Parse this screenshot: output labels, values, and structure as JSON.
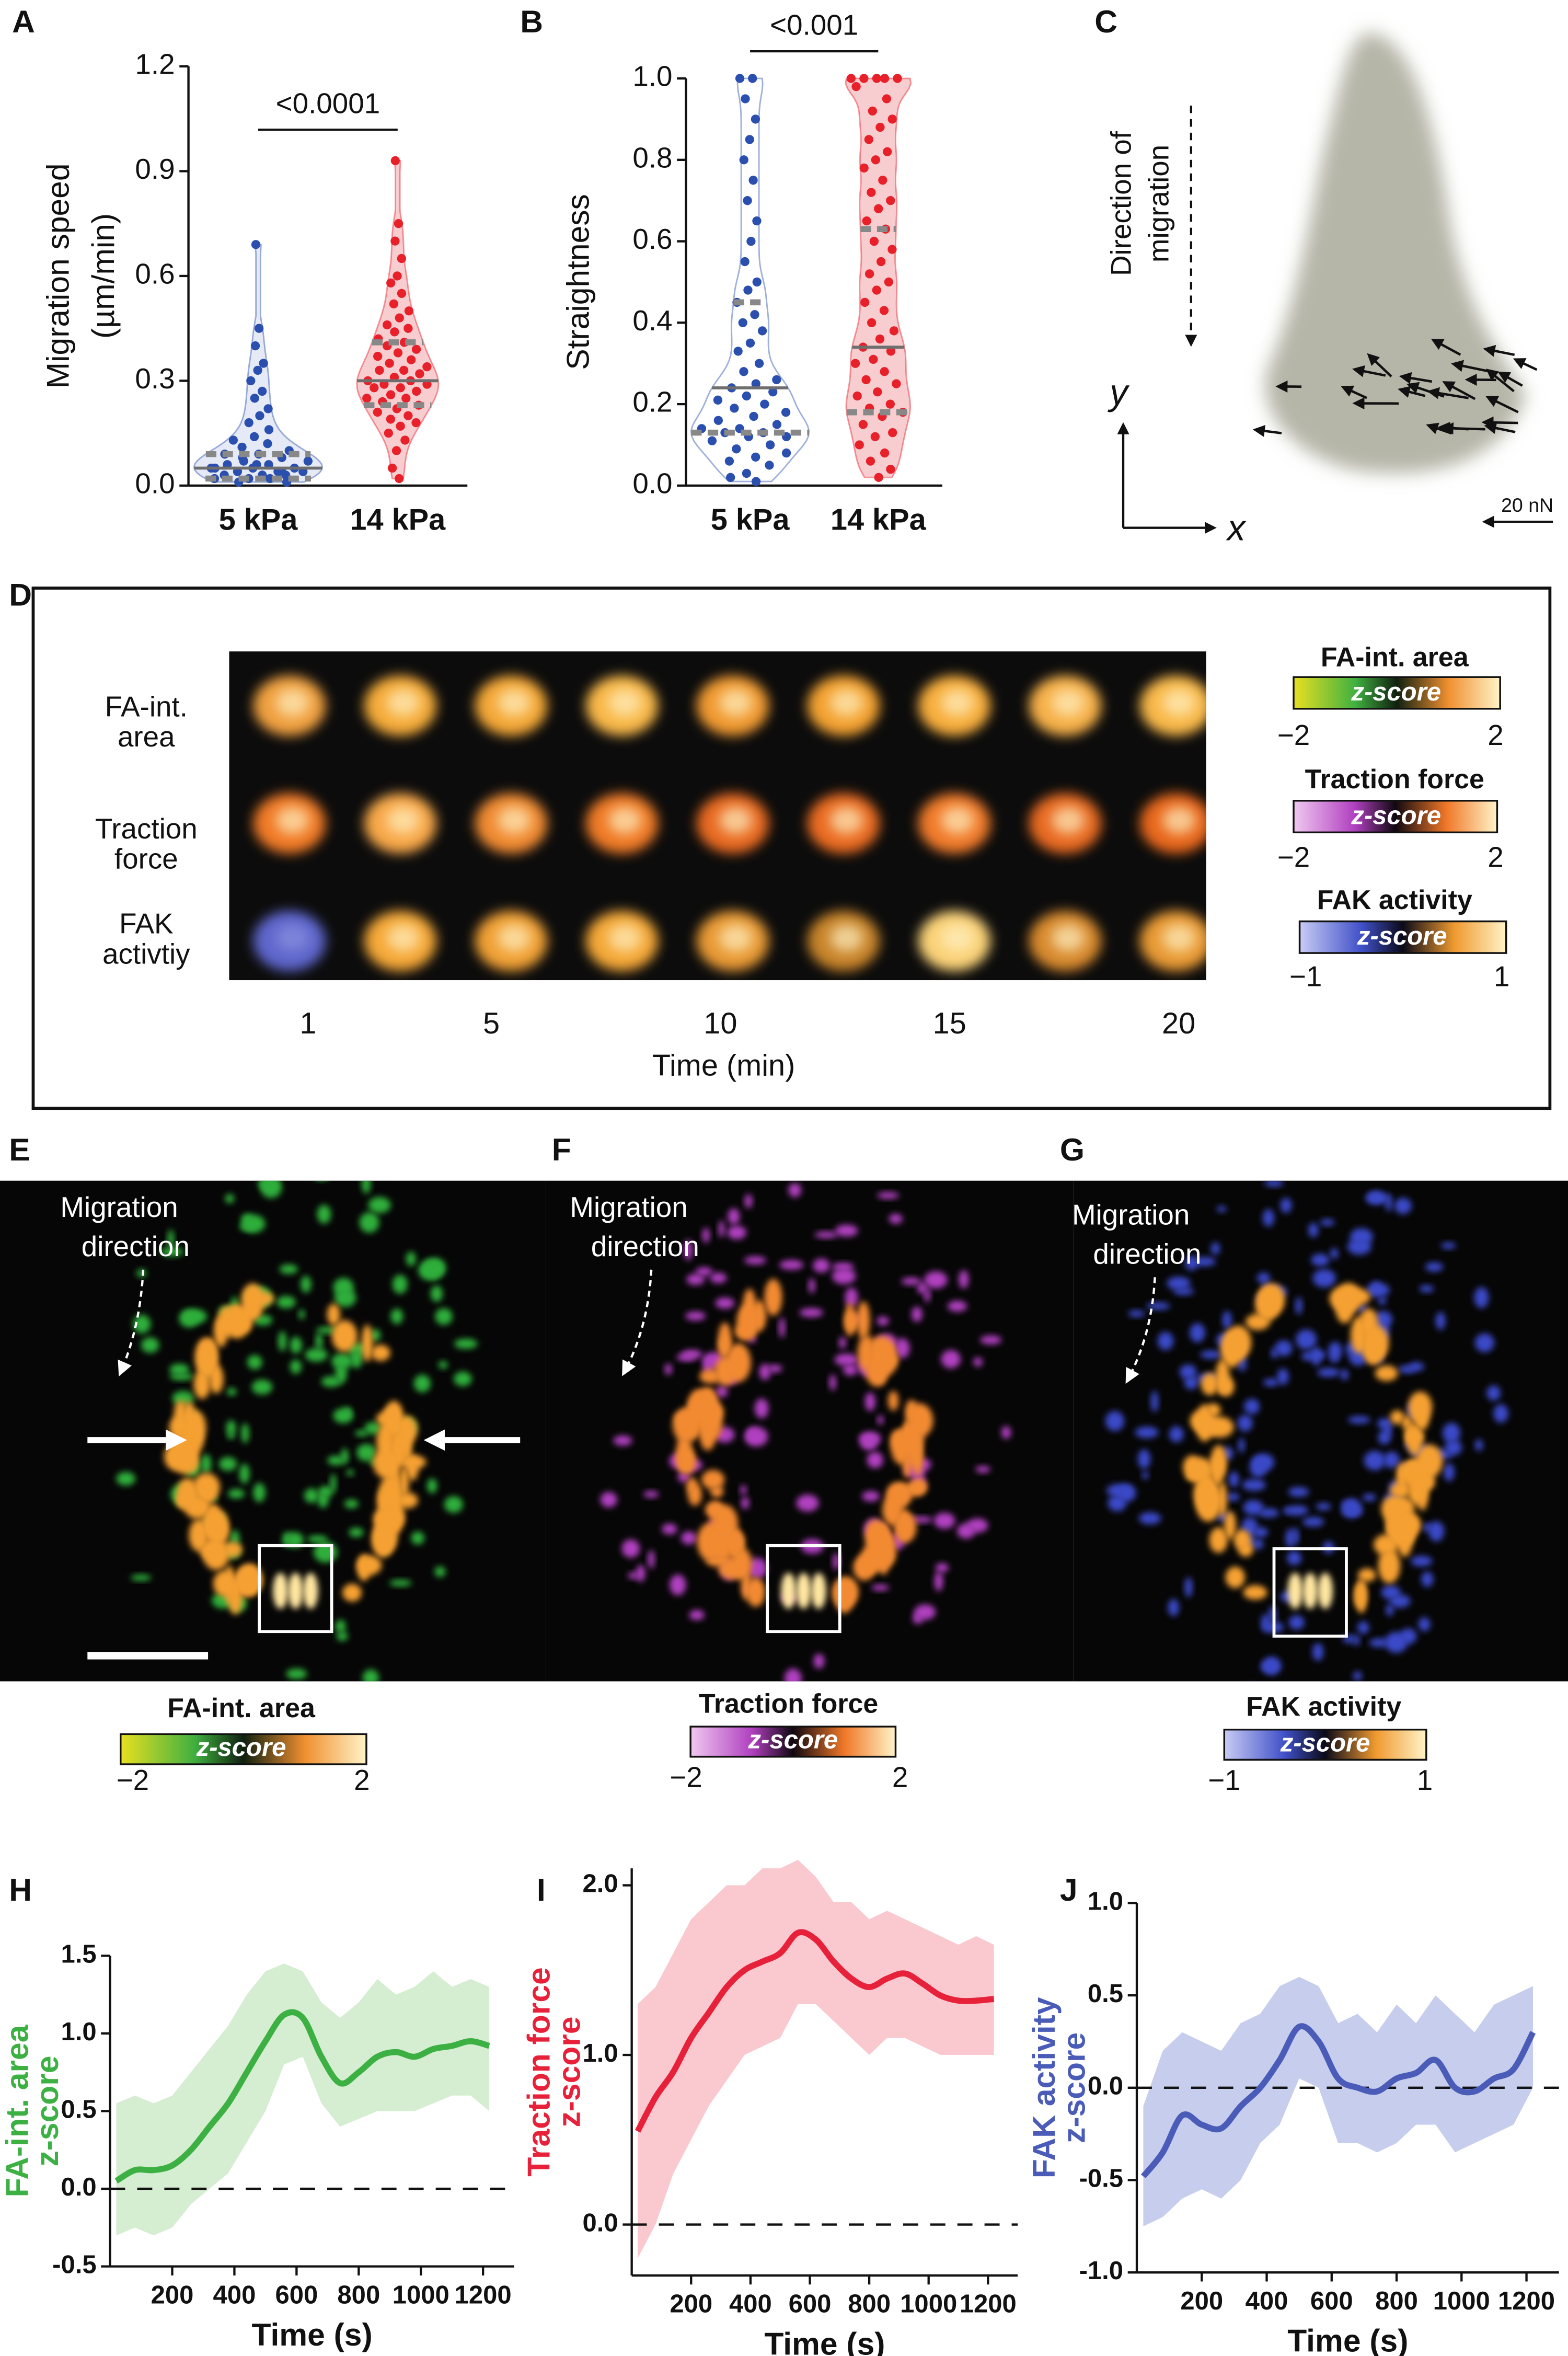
{
  "chart_data": [
    {
      "type": "violin",
      "panel": "A",
      "ylabel": [
        "Migration speed",
        "(µm/min)"
      ],
      "categories": [
        "5 kPa",
        "14 kPa"
      ],
      "annotation": "<0.0001",
      "ylim": [
        0,
        1.2
      ],
      "yticks": [
        {
          "value": 0,
          "label": "0.0"
        },
        0.3,
        0.6,
        0.9,
        1.2
      ],
      "groups": [
        {
          "color": "#2a4fae",
          "fill": "#e6eaf6",
          "median": 0.05,
          "q1": 0.02,
          "q3": 0.09,
          "points": [
            0.69,
            0.45,
            0.4,
            0.35,
            0.33,
            0.3,
            0.27,
            0.25,
            0.22,
            0.2,
            0.18,
            0.16,
            0.14,
            0.13,
            0.12,
            0.11,
            0.1,
            0.09,
            0.09,
            0.08,
            0.07,
            0.07,
            0.06,
            0.06,
            0.05,
            0.05,
            0.05,
            0.04,
            0.04,
            0.04,
            0.03,
            0.03,
            0.03,
            0.02,
            0.02,
            0.02,
            0.01,
            0.01,
            0.06,
            0.05,
            0.04,
            0.08
          ]
        },
        {
          "color": "#e8202a",
          "fill": "#f7cdd0",
          "median": 0.3,
          "q1": 0.23,
          "q3": 0.41,
          "points": [
            0.93,
            0.75,
            0.7,
            0.65,
            0.6,
            0.58,
            0.55,
            0.52,
            0.5,
            0.48,
            0.46,
            0.45,
            0.44,
            0.42,
            0.41,
            0.4,
            0.39,
            0.38,
            0.37,
            0.36,
            0.35,
            0.34,
            0.33,
            0.33,
            0.32,
            0.31,
            0.3,
            0.3,
            0.29,
            0.29,
            0.28,
            0.28,
            0.27,
            0.26,
            0.25,
            0.25,
            0.24,
            0.23,
            0.22,
            0.21,
            0.2,
            0.19,
            0.18,
            0.17,
            0.15,
            0.13,
            0.1,
            0.05,
            0.02
          ]
        }
      ]
    },
    {
      "type": "violin",
      "panel": "B",
      "ylabel": [
        "Straightness"
      ],
      "categories": [
        "5 kPa",
        "14 kPa"
      ],
      "annotation": "<0.001",
      "ylim": [
        0,
        1
      ],
      "yticks": [
        {
          "value": 0,
          "label": "0.0"
        },
        0.2,
        0.4,
        0.6,
        0.8,
        {
          "value": 1,
          "label": "1.0"
        }
      ],
      "groups": [
        {
          "color": "#2a4fae",
          "fill": "#ffffff",
          "median": 0.24,
          "q1": 0.13,
          "q3": 0.45,
          "points": [
            1.0,
            1.0,
            0.95,
            0.9,
            0.85,
            0.8,
            0.75,
            0.7,
            0.65,
            0.6,
            0.55,
            0.5,
            0.48,
            0.45,
            0.42,
            0.4,
            0.38,
            0.35,
            0.33,
            0.3,
            0.28,
            0.26,
            0.25,
            0.24,
            0.23,
            0.22,
            0.21,
            0.2,
            0.19,
            0.18,
            0.17,
            0.16,
            0.15,
            0.14,
            0.14,
            0.13,
            0.13,
            0.12,
            0.12,
            0.11,
            0.1,
            0.09,
            0.08,
            0.07,
            0.06,
            0.05,
            0.03,
            0.02,
            0.01
          ]
        },
        {
          "color": "#e8202a",
          "fill": "#f7cdd0",
          "median": 0.34,
          "q1": 0.18,
          "q3": 0.63,
          "points": [
            1.0,
            1.0,
            1.0,
            1.0,
            1.0,
            0.98,
            0.95,
            0.92,
            0.9,
            0.88,
            0.85,
            0.82,
            0.8,
            0.78,
            0.75,
            0.72,
            0.7,
            0.68,
            0.65,
            0.63,
            0.6,
            0.58,
            0.55,
            0.52,
            0.5,
            0.48,
            0.45,
            0.43,
            0.4,
            0.38,
            0.36,
            0.34,
            0.33,
            0.31,
            0.3,
            0.28,
            0.26,
            0.25,
            0.23,
            0.22,
            0.2,
            0.19,
            0.18,
            0.17,
            0.15,
            0.13,
            0.12,
            0.1,
            0.08,
            0.06,
            0.04,
            0.02
          ]
        }
      ]
    },
    {
      "type": "band-line",
      "panel": "H",
      "ylabel": [
        "FA-int. area",
        "z-score"
      ],
      "xlabel": "Time (s)",
      "color": "#3cb043",
      "band_color": "#cbe9c4",
      "xlim": [
        0,
        1300
      ],
      "xticks": [
        200,
        400,
        600,
        800,
        1000,
        1200
      ],
      "ylim": [
        -0.5,
        1.5
      ],
      "yticks": [
        -0.5,
        {
          "value": 0,
          "label": "0.0"
        },
        0.5,
        {
          "value": 1,
          "label": "1.0"
        },
        1.5
      ],
      "hline": 0,
      "x": [
        20,
        80,
        140,
        200,
        260,
        320,
        380,
        440,
        500,
        560,
        620,
        680,
        740,
        800,
        860,
        920,
        980,
        1040,
        1100,
        1160,
        1220
      ],
      "values": [
        0.05,
        0.12,
        0.12,
        0.15,
        0.25,
        0.4,
        0.55,
        0.75,
        0.95,
        1.12,
        1.1,
        0.85,
        0.68,
        0.75,
        0.85,
        0.88,
        0.85,
        0.9,
        0.92,
        0.95,
        0.92
      ],
      "upper": [
        0.55,
        0.6,
        0.55,
        0.6,
        0.75,
        0.9,
        1.05,
        1.25,
        1.4,
        1.45,
        1.4,
        1.2,
        1.1,
        1.2,
        1.35,
        1.25,
        1.3,
        1.4,
        1.3,
        1.35,
        1.3
      ],
      "lower": [
        -0.3,
        -0.25,
        -0.3,
        -0.25,
        -0.1,
        0,
        0.1,
        0.3,
        0.5,
        0.8,
        0.85,
        0.55,
        0.4,
        0.45,
        0.5,
        0.5,
        0.5,
        0.55,
        0.6,
        0.6,
        0.5
      ]
    },
    {
      "type": "band-line",
      "panel": "I",
      "ylabel": [
        "Traction force",
        "z-score"
      ],
      "xlabel": "Time (s)",
      "color": "#e8213a",
      "band_color": "#f7bcc3",
      "xlim": [
        0,
        1300
      ],
      "xticks": [
        200,
        400,
        600,
        800,
        1000,
        1200
      ],
      "ylim": [
        -0.3,
        2.1
      ],
      "yticks": [
        {
          "value": 0,
          "label": "0.0"
        },
        {
          "value": 1,
          "label": "1.0"
        },
        {
          "value": 2,
          "label": "2.0"
        }
      ],
      "hline": 0,
      "x": [
        20,
        80,
        140,
        200,
        260,
        320,
        380,
        440,
        500,
        560,
        620,
        680,
        740,
        800,
        860,
        920,
        980,
        1040,
        1100,
        1160,
        1220
      ],
      "values": [
        0.55,
        0.75,
        0.9,
        1.1,
        1.25,
        1.4,
        1.5,
        1.55,
        1.6,
        1.72,
        1.68,
        1.55,
        1.45,
        1.4,
        1.45,
        1.48,
        1.42,
        1.35,
        1.32,
        1.32,
        1.33
      ],
      "upper": [
        1.3,
        1.4,
        1.6,
        1.8,
        1.9,
        2.0,
        2.0,
        2.1,
        2.1,
        2.15,
        2.05,
        1.9,
        1.9,
        1.8,
        1.85,
        1.8,
        1.75,
        1.7,
        1.65,
        1.7,
        1.65
      ],
      "lower": [
        -0.2,
        0,
        0.3,
        0.5,
        0.7,
        0.85,
        1.0,
        1.05,
        1.1,
        1.3,
        1.3,
        1.2,
        1.1,
        1.0,
        1.1,
        1.1,
        1.05,
        1.0,
        1.0,
        1.0,
        1.0
      ]
    },
    {
      "type": "band-line",
      "panel": "J",
      "ylabel": [
        "FAK activity",
        "z-score"
      ],
      "xlabel": "Time (s)",
      "color": "#4a5cb8",
      "band_color": "#b8c0e8",
      "xlim": [
        0,
        1300
      ],
      "xticks": [
        200,
        400,
        600,
        800,
        1000,
        1200
      ],
      "ylim": [
        -1,
        1
      ],
      "yticks": [
        {
          "value": -1,
          "label": "-1.0"
        },
        -0.5,
        {
          "value": 0,
          "label": "0.0"
        },
        0.5,
        {
          "value": 1,
          "label": "1.0"
        }
      ],
      "hline": 0,
      "x": [
        20,
        80,
        140,
        200,
        260,
        320,
        380,
        440,
        500,
        560,
        620,
        680,
        740,
        800,
        860,
        920,
        980,
        1040,
        1100,
        1160,
        1220
      ],
      "values": [
        -0.48,
        -0.35,
        -0.15,
        -0.2,
        -0.22,
        -0.1,
        0,
        0.15,
        0.33,
        0.25,
        0.05,
        0,
        -0.02,
        0.05,
        0.08,
        0.15,
        0,
        -0.02,
        0.05,
        0.1,
        0.3
      ],
      "upper": [
        -0.1,
        0.2,
        0.3,
        0.25,
        0.2,
        0.35,
        0.4,
        0.55,
        0.6,
        0.55,
        0.35,
        0.4,
        0.3,
        0.45,
        0.35,
        0.5,
        0.4,
        0.3,
        0.45,
        0.5,
        0.55
      ],
      "lower": [
        -0.75,
        -0.7,
        -0.6,
        -0.55,
        -0.6,
        -0.5,
        -0.3,
        -0.2,
        0.05,
        0,
        -0.3,
        -0.3,
        -0.35,
        -0.3,
        -0.2,
        -0.2,
        -0.35,
        -0.3,
        -0.25,
        -0.2,
        0
      ]
    }
  ],
  "panel_c": {
    "label": "C",
    "direction": [
      "Direction of",
      "migration"
    ],
    "y_axis": "y",
    "x_axis": "x",
    "scale": "20 nN"
  },
  "panel_d": {
    "label": "D",
    "rows": [
      [
        "FA-int.",
        "area"
      ],
      [
        "Traction",
        "force"
      ],
      [
        "FAK",
        "activtiy"
      ]
    ],
    "xlabel": "Time (min)",
    "xlim": [
      0.2,
      20.6
    ],
    "xticks": [
      1,
      5,
      10,
      15,
      20
    ],
    "colorbars": [
      {
        "title": "FA-int. area",
        "text": "z-score",
        "ticks": [
          {
            "value": -2,
            "label": "−2"
          },
          2
        ]
      },
      {
        "title": "Traction force",
        "text": "z-score",
        "ticks": [
          {
            "value": -2,
            "label": "−2"
          },
          2
        ]
      },
      {
        "title": "FAK activity",
        "text": "z-score",
        "ticks": [
          {
            "value": -1,
            "label": "−1"
          },
          1
        ]
      }
    ]
  },
  "panels_efg": [
    {
      "label": "E",
      "annotation": [
        "Migration",
        "direction"
      ],
      "colorbar": {
        "title": "FA-int. area",
        "text": "z-score",
        "ticks": [
          {
            "value": -2,
            "label": "−2"
          },
          2
        ]
      }
    },
    {
      "label": "F",
      "annotation": [
        "Migration",
        "direction"
      ],
      "colorbar": {
        "title": "Traction force",
        "text": "z-score",
        "ticks": [
          {
            "value": -2,
            "label": "−2"
          },
          2
        ]
      }
    },
    {
      "label": "G",
      "annotation": [
        "Migration",
        "direction"
      ],
      "colorbar": {
        "title": "FAK activity",
        "text": "z-score",
        "ticks": [
          {
            "value": -1,
            "label": "−1"
          },
          1
        ]
      }
    }
  ]
}
